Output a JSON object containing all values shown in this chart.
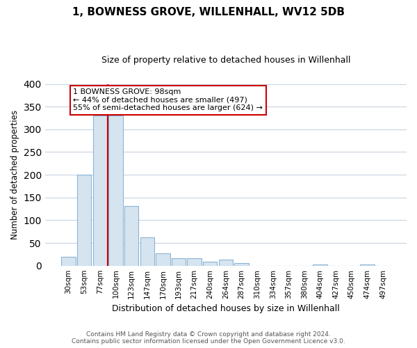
{
  "title": "1, BOWNESS GROVE, WILLENHALL, WV12 5DB",
  "subtitle": "Size of property relative to detached houses in Willenhall",
  "xlabel": "Distribution of detached houses by size in Willenhall",
  "ylabel": "Number of detached properties",
  "bar_labels": [
    "30sqm",
    "53sqm",
    "77sqm",
    "100sqm",
    "123sqm",
    "147sqm",
    "170sqm",
    "193sqm",
    "217sqm",
    "240sqm",
    "264sqm",
    "287sqm",
    "310sqm",
    "334sqm",
    "357sqm",
    "380sqm",
    "404sqm",
    "427sqm",
    "450sqm",
    "474sqm",
    "497sqm"
  ],
  "bar_values": [
    19,
    200,
    330,
    330,
    131,
    62,
    27,
    17,
    16,
    8,
    14,
    5,
    0,
    0,
    0,
    0,
    3,
    0,
    0,
    3,
    0
  ],
  "bar_color": "#d6e4f0",
  "bar_edge_color": "#8ab4d4",
  "vline_x": 2.5,
  "vline_color": "#cc0000",
  "ylim": [
    0,
    400
  ],
  "yticks": [
    0,
    50,
    100,
    150,
    200,
    250,
    300,
    350,
    400
  ],
  "annotation_box_color": "#ffffff",
  "annotation_border_color": "#cc0000",
  "footer_line1": "Contains HM Land Registry data © Crown copyright and database right 2024.",
  "footer_line2": "Contains public sector information licensed under the Open Government Licence v3.0.",
  "background_color": "#ffffff",
  "grid_color": "#c8d4e0"
}
